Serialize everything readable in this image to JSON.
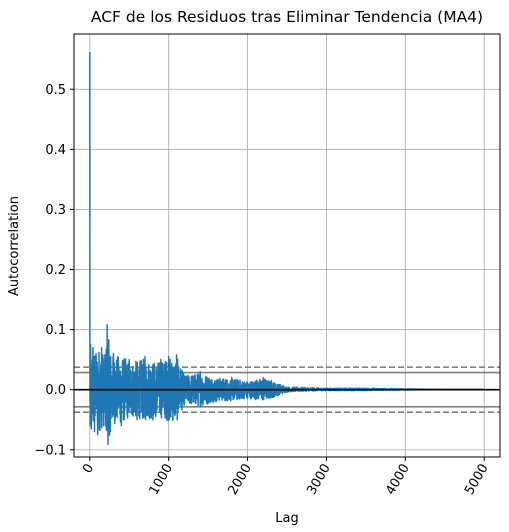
{
  "chart_data": {
    "type": "line",
    "title": "ACF de los Residuos tras Eliminar Tendencia (MA4)",
    "xlabel": "Lag",
    "ylabel": "Autocorrelation",
    "xlim": [
      -200,
      5200
    ],
    "ylim": [
      -0.112,
      0.592
    ],
    "xticks": [
      0,
      1000,
      2000,
      3000,
      4000,
      5000
    ],
    "xtick_labels": [
      "0",
      "1000",
      "2000",
      "3000",
      "4000",
      "5000"
    ],
    "xtick_rotation": -60,
    "yticks": [
      -0.1,
      0.0,
      0.1,
      0.2,
      0.3,
      0.4,
      0.5
    ],
    "ytick_labels": [
      "−0.1",
      "0.0",
      "0.1",
      "0.2",
      "0.3",
      "0.4",
      "0.5"
    ],
    "grid": true,
    "legend": "none",
    "series": [
      {
        "values_description": "autocorrelation per lag",
        "color": "#1f77b4",
        "x": [
          0,
          1,
          2,
          3,
          4,
          5,
          10,
          20,
          40,
          60,
          80,
          100,
          150,
          200,
          220,
          260,
          300,
          400,
          500,
          600,
          700,
          800,
          900,
          1000,
          1100,
          1200,
          1400,
          1600,
          1800,
          2000,
          2200,
          2300,
          2500,
          3000,
          3500,
          4000,
          4500,
          5000
        ],
        "y": [
          0.562,
          0.3,
          0.08,
          -0.02,
          0.07,
          -0.06,
          0.075,
          -0.065,
          0.07,
          -0.07,
          0.06,
          -0.075,
          0.07,
          -0.06,
          0.108,
          -0.07,
          0.06,
          -0.06,
          0.05,
          -0.05,
          0.055,
          -0.05,
          0.05,
          0.055,
          0.058,
          -0.025,
          0.03,
          -0.02,
          0.02,
          -0.015,
          0.02,
          0.015,
          -0.004,
          0.002,
          -0.002,
          0.001,
          0.0,
          0.0
        ]
      }
    ],
    "reference_lines": {
      "zero": 0.0,
      "solid_band": [
        -0.0285,
        0.0285
      ],
      "dashed_band": [
        -0.0375,
        0.0375
      ]
    },
    "colors": {
      "series": "#1f77b4",
      "grid": "#b0b0b0",
      "reference": "#808080",
      "zero_line": "#000000"
    }
  }
}
